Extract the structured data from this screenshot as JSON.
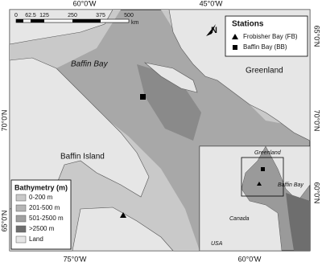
{
  "map": {
    "graticule": {
      "top": [
        "60°0'W",
        "45°0'W"
      ],
      "bottom": [
        "75°0'W",
        "60°0'W"
      ],
      "left": [
        "70°0'N",
        "65°0'N"
      ],
      "right": [
        "65°0'N",
        "70°0'N",
        "60°0'N"
      ]
    },
    "scale_bar": {
      "ticks": [
        "0",
        "62.5",
        "125",
        "250",
        "375",
        "500"
      ],
      "unit": "km"
    },
    "north_arrow": "N",
    "place_labels": [
      "Baffin Bay",
      "Greenland",
      "Baffin Island"
    ],
    "stations_legend": {
      "title": "Stations",
      "items": [
        "Frobisher Bay (FB)",
        "Baffin Bay (BB)"
      ]
    },
    "bathymetry_legend": {
      "title": "Bathymetry (m)",
      "items": [
        "0-200 m",
        "201-500 m",
        "501-2500 m",
        ">2500 m",
        "Land"
      ]
    },
    "inset": {
      "labels": [
        "Greenland",
        "Baffin Bay",
        "Canada",
        "USA"
      ]
    }
  }
}
